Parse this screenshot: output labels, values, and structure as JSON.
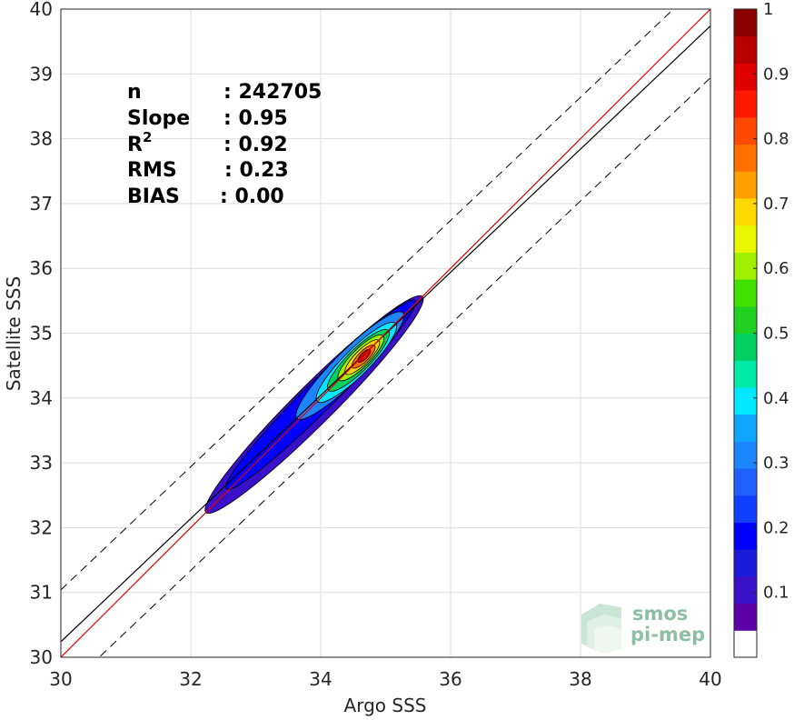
{
  "chart_data": {
    "type": "density-scatter",
    "xlabel": "Argo SSS",
    "ylabel": "Satellite SSS",
    "xlim": [
      30,
      40
    ],
    "ylim": [
      30,
      40
    ],
    "xticks": [
      "30",
      "32",
      "34",
      "36",
      "38",
      "40"
    ],
    "yticks": [
      "30",
      "31",
      "32",
      "33",
      "34",
      "35",
      "36",
      "37",
      "38",
      "39",
      "40"
    ],
    "grid": true,
    "stats": [
      {
        "label": "n",
        "value": ": 242705"
      },
      {
        "label": "Slope",
        "value": ": 0.95"
      },
      {
        "label": "R",
        "sup": "2",
        "value": ": 0.92"
      },
      {
        "label": "RMS",
        "value": ": 0.23"
      },
      {
        "label": "BIAS",
        "value": ": 0.00"
      }
    ],
    "reference_lines": {
      "identity": {
        "slope": 1,
        "intercept": 0,
        "color": "#e00000"
      },
      "fit": {
        "slope": 0.95,
        "intercept": 1.74,
        "color": "#000000"
      },
      "bounds_offset": 0.8
    },
    "colorbar": {
      "range": [
        0,
        1
      ],
      "ticks": [
        "0.1",
        "0.2",
        "0.3",
        "0.4",
        "0.5",
        "0.6",
        "0.7",
        "0.8",
        "0.9",
        "1"
      ],
      "levels": [
        "#ffffff",
        "#5e00a8",
        "#3a10c8",
        "#1c1cd8",
        "#0000ff",
        "#1040ff",
        "#2060ff",
        "#1c86ff",
        "#10a6ff",
        "#00e8ff",
        "#00e8a8",
        "#00d060",
        "#20d020",
        "#40e000",
        "#a0f000",
        "#e8f800",
        "#ffd800",
        "#ffa000",
        "#ff7000",
        "#ff4800",
        "#ff1800",
        "#e00000",
        "#b80000",
        "#8c0000"
      ]
    },
    "contours": [
      {
        "level": 0.05,
        "color": "#3a10c8",
        "center": [
          33.9,
          33.9
        ],
        "along": 2.35,
        "across": 0.3
      },
      {
        "level": 0.15,
        "color": "#0000ff",
        "center": [
          34.0,
          34.05
        ],
        "along": 2.05,
        "across": 0.23
      },
      {
        "level": 0.25,
        "color": "#1c86ff",
        "center": [
          34.45,
          34.5
        ],
        "along": 1.15,
        "across": 0.23
      },
      {
        "level": 0.35,
        "color": "#00e8ff",
        "center": [
          34.55,
          34.55
        ],
        "along": 0.85,
        "across": 0.2
      },
      {
        "level": 0.45,
        "color": "#00d060",
        "center": [
          34.58,
          34.58
        ],
        "along": 0.65,
        "across": 0.17
      },
      {
        "level": 0.6,
        "color": "#a0f000",
        "center": [
          34.62,
          34.62
        ],
        "along": 0.48,
        "across": 0.14
      },
      {
        "level": 0.7,
        "color": "#ffd800",
        "center": [
          34.64,
          34.63
        ],
        "along": 0.36,
        "across": 0.11
      },
      {
        "level": 0.8,
        "color": "#ff7000",
        "center": [
          34.66,
          34.64
        ],
        "along": 0.24,
        "across": 0.08
      },
      {
        "level": 0.9,
        "color": "#e00000",
        "center": [
          34.67,
          34.65
        ],
        "along": 0.13,
        "across": 0.05
      }
    ]
  },
  "watermark": {
    "line1": "smos",
    "line2": "pi-mep"
  }
}
